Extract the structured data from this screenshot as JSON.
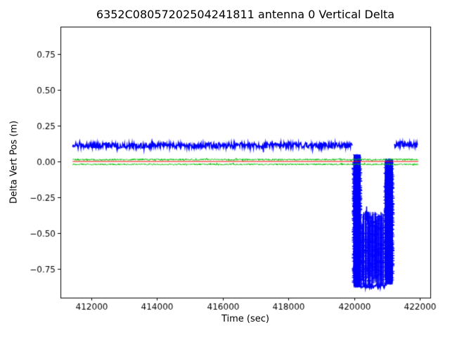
{
  "chart_data": {
    "type": "line",
    "title": "6352C08057202504241811 antenna 0 Vertical Delta",
    "xlabel": "Time (sec)",
    "ylabel": "Delta Vert Pos (m)",
    "xlim": [
      411060,
      422320
    ],
    "ylim": [
      -0.95,
      0.94
    ],
    "xticks": [
      412000,
      414000,
      416000,
      418000,
      420000,
      422000
    ],
    "yticks": [
      -0.75,
      -0.5,
      -0.25,
      0.0,
      0.25,
      0.5,
      0.75
    ],
    "grid": false,
    "legend": "none",
    "colors": {
      "main": "#0000ff",
      "reference_green": "#00bf00",
      "reference_red": "#ff0000",
      "axes": "#000000",
      "background": "#ffffff"
    },
    "series": [
      {
        "name": "antenna0-vertical-delta",
        "color": "#0000ff",
        "lw": 1.5,
        "segments": [
          {
            "kind": "noisy",
            "x0": 411430,
            "x1": 419950,
            "y": 0.112,
            "amp": 0.02
          },
          {
            "kind": "spikes",
            "x0": 419990,
            "x1": 420190,
            "ytop": 0.05,
            "ybot": -0.88,
            "count": 220
          },
          {
            "kind": "spikes",
            "x0": 420190,
            "x1": 420940,
            "ytop": -0.35,
            "ybot": -0.87,
            "count": 70
          },
          {
            "kind": "noisy",
            "x0": 420200,
            "x1": 420980,
            "y": -0.868,
            "amp": 0.016
          },
          {
            "kind": "noisy",
            "x0": 420330,
            "x1": 420440,
            "y": -0.39,
            "amp": 0.05
          },
          {
            "kind": "spikes",
            "x0": 420950,
            "x1": 421170,
            "ytop": 0.02,
            "ybot": -0.86,
            "count": 180
          },
          {
            "kind": "noisy",
            "x0": 420960,
            "x1": 421040,
            "y": -0.56,
            "amp": 0.035
          },
          {
            "kind": "noisy",
            "x0": 421230,
            "x1": 421930,
            "y": 0.118,
            "amp": 0.019
          }
        ]
      },
      {
        "name": "reference-upper-green",
        "color": "#00bf00",
        "lw": 1,
        "segments": [
          {
            "kind": "noisy",
            "x0": 411430,
            "x1": 421950,
            "y": 0.013,
            "amp": 0.006
          }
        ]
      },
      {
        "name": "reference-lower-green",
        "color": "#00bf00",
        "lw": 1,
        "segments": [
          {
            "kind": "noisy",
            "x0": 411430,
            "x1": 421950,
            "y": -0.02,
            "amp": 0.005
          }
        ]
      },
      {
        "name": "reference-zero-red",
        "color": "#ff0000",
        "lw": 1.2,
        "segments": [
          {
            "kind": "line",
            "x0": 411430,
            "x1": 421950,
            "y": 0.0
          }
        ]
      }
    ]
  }
}
